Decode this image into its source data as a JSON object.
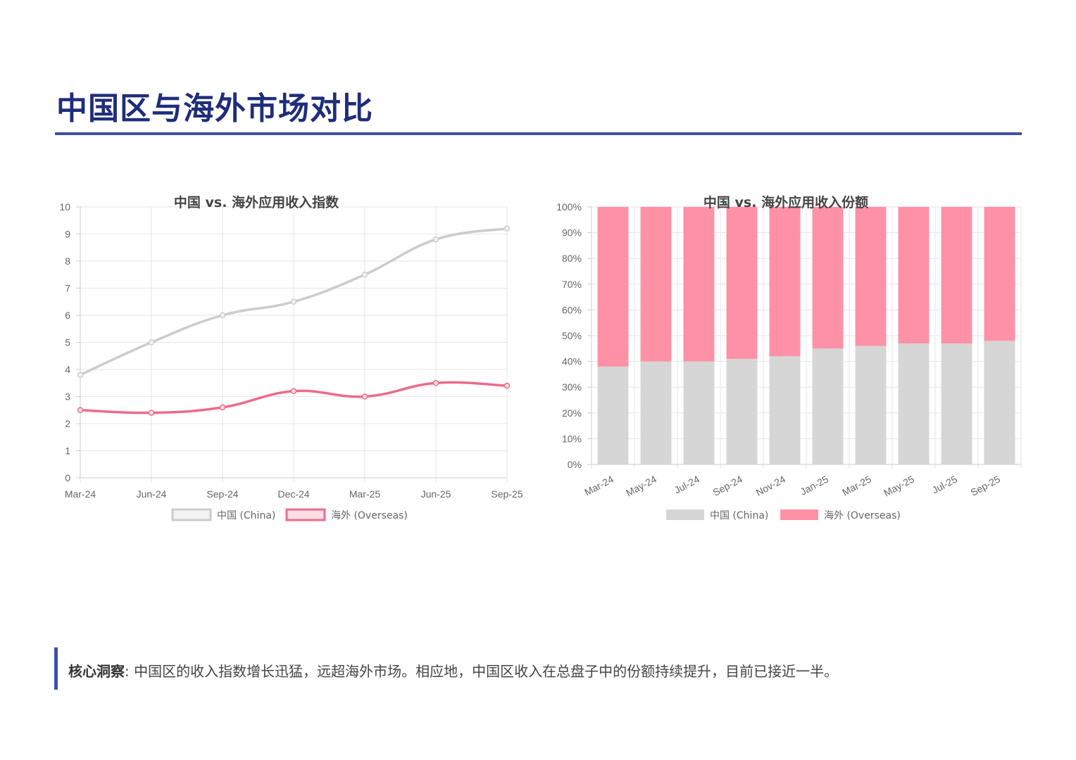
{
  "page_title": "中国区与海外市场对比",
  "insight": {
    "label": "核心洞察",
    "text": ": 中国区的收入指数增长迅猛，远超海外市场。相应地，中国区收入在总盘子中的份额持续提升，目前已接近一半。"
  },
  "colors": {
    "china_line": "#cccccc",
    "overseas_line": "#eb6c8a",
    "china_bar": "#d6d6d6",
    "overseas_bar": "#ff91a6",
    "title": "#1f2d7b",
    "accent": "#3f51a5"
  },
  "chart_data": [
    {
      "type": "line",
      "title": "中国 vs. 海外应用收入指数",
      "categories": [
        "Mar-24",
        "Jun-24",
        "Sep-24",
        "Dec-24",
        "Mar-25",
        "Jun-25",
        "Sep-25"
      ],
      "ylim": [
        0,
        10
      ],
      "yticks": [
        0,
        1,
        2,
        3,
        4,
        5,
        6,
        7,
        8,
        9,
        10
      ],
      "series": [
        {
          "name": "中国 (China)",
          "values": [
            3.8,
            5.0,
            6.0,
            6.5,
            7.5,
            8.8,
            9.2
          ]
        },
        {
          "name": "海外 (Overseas)",
          "values": [
            2.5,
            2.4,
            2.6,
            3.2,
            3.0,
            3.5,
            3.4
          ]
        }
      ],
      "legend": "bottom"
    },
    {
      "type": "bar",
      "stacked": true,
      "title": "中国 vs. 海外应用收入份额",
      "categories": [
        "Mar-24",
        "May-24",
        "Jul-24",
        "Sep-24",
        "Nov-24",
        "Jan-25",
        "Mar-25",
        "May-25",
        "Jul-25",
        "Sep-25"
      ],
      "ylim": [
        0,
        100
      ],
      "yticks": [
        "0%",
        "10%",
        "20%",
        "30%",
        "40%",
        "50%",
        "60%",
        "70%",
        "80%",
        "90%",
        "100%"
      ],
      "series": [
        {
          "name": "中国 (China)",
          "values": [
            38,
            40,
            40,
            41,
            42,
            45,
            46,
            47,
            47,
            48
          ]
        },
        {
          "name": "海外 (Overseas)",
          "values": [
            62,
            60,
            60,
            59,
            58,
            55,
            54,
            53,
            53,
            52
          ]
        }
      ],
      "legend": "bottom"
    }
  ]
}
